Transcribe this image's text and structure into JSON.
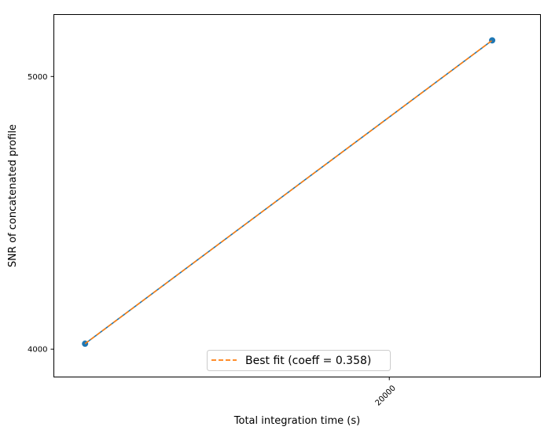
{
  "chart_data": {
    "type": "line",
    "title": "",
    "xlabel": "Total integration time (s)",
    "ylabel": "SNR of concatenated profile",
    "xscale": "log",
    "yscale": "log",
    "xlim": [
      15100,
      22700
    ],
    "ylim": [
      3910,
      5260
    ],
    "xticks": [
      20000
    ],
    "xtick_labels": [
      "20000"
    ],
    "yticks": [
      4000,
      5000
    ],
    "ytick_labels": [
      "4000",
      "5000"
    ],
    "grid": false,
    "legend_location": "lower center",
    "series": [
      {
        "kind": "scatter+line",
        "color": "#1f77b4",
        "x": [
          15500,
          21800
        ],
        "y": [
          4018,
          5150
        ]
      },
      {
        "name": "Best fit (coeff = 0.358)",
        "kind": "dashed-line",
        "color": "#ff7f0e",
        "x": [
          15500,
          21800
        ],
        "y": [
          4018,
          5150
        ]
      }
    ]
  }
}
